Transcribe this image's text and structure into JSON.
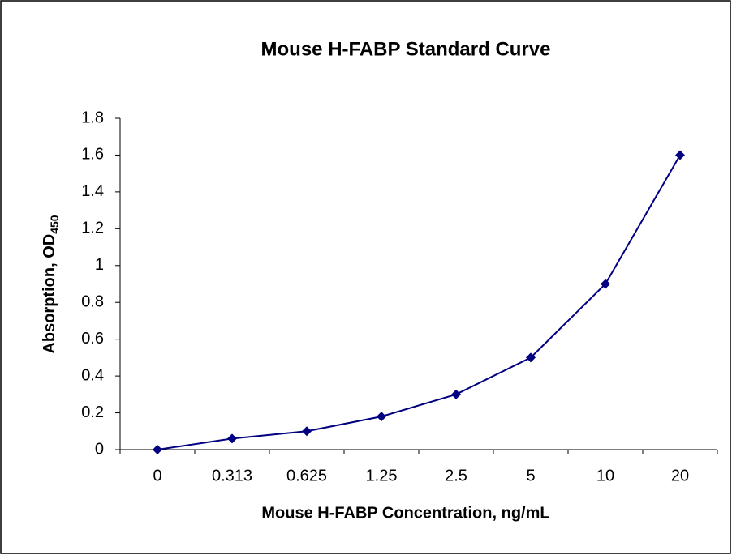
{
  "chart_data": {
    "type": "line",
    "title": "Mouse H-FABP Standard Curve",
    "x_label": "Mouse H-FABP Concentration, ng/mL",
    "y_label": {
      "text": "Absorption, OD",
      "subscript": "450"
    },
    "categories": [
      "0",
      "0.313",
      "0.625",
      "1.25",
      "2.5",
      "5",
      "10",
      "20"
    ],
    "values": [
      0,
      0.06,
      0.1,
      0.18,
      0.3,
      0.5,
      0.9,
      1.6
    ],
    "color": "#000080",
    "ylim": [
      0,
      1.8
    ],
    "yticks": [
      0,
      0.2,
      0.4,
      0.6,
      0.8,
      1,
      1.2,
      1.4,
      1.6,
      1.8
    ],
    "grid": false
  }
}
